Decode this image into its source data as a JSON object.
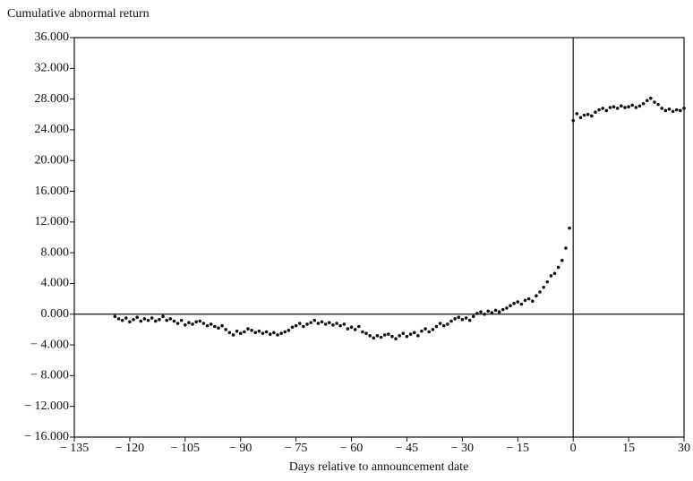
{
  "chart_data": {
    "type": "scatter",
    "title": "Cumulative abnormal return",
    "x_label": "Days relative to announcement date",
    "color": "#111111",
    "xlim": [
      -135,
      30
    ],
    "ylim": [
      -16,
      36
    ],
    "xticks": [
      {
        "value": -135,
        "label": "− 135"
      },
      {
        "value": -120,
        "label": "− 120"
      },
      {
        "value": -105,
        "label": "− 105"
      },
      {
        "value": -90,
        "label": "− 90"
      },
      {
        "value": -75,
        "label": "− 75"
      },
      {
        "value": -60,
        "label": "− 60"
      },
      {
        "value": -45,
        "label": "− 45"
      },
      {
        "value": -30,
        "label": "− 30"
      },
      {
        "value": -15,
        "label": "− 15"
      },
      0,
      15,
      30
    ],
    "yticks": [
      {
        "value": 36,
        "label": "36.000"
      },
      {
        "value": 32,
        "label": "32.000"
      },
      {
        "value": 28,
        "label": "28.000"
      },
      {
        "value": 24,
        "label": "24.000"
      },
      {
        "value": 20,
        "label": "20.000"
      },
      {
        "value": 16,
        "label": "16.000"
      },
      {
        "value": 12,
        "label": "12.000"
      },
      {
        "value": 8,
        "label": "8.000"
      },
      {
        "value": 4,
        "label": "4.000"
      },
      {
        "value": 0,
        "label": "0.000"
      },
      {
        "value": -4,
        "label": "− 4.000"
      },
      {
        "value": -8,
        "label": "− 8.000"
      },
      {
        "value": -12,
        "label": "− 12.000"
      },
      {
        "value": -16,
        "label": "− 16.000"
      }
    ],
    "hline": 0,
    "vline": 0,
    "x": [
      -124,
      -123,
      -122,
      -121,
      -120,
      -119,
      -118,
      -117,
      -116,
      -115,
      -114,
      -113,
      -112,
      -111,
      -110,
      -109,
      -108,
      -107,
      -106,
      -105,
      -104,
      -103,
      -102,
      -101,
      -100,
      -99,
      -98,
      -97,
      -96,
      -95,
      -94,
      -93,
      -92,
      -91,
      -90,
      -89,
      -88,
      -87,
      -86,
      -85,
      -84,
      -83,
      -82,
      -81,
      -80,
      -79,
      -78,
      -77,
      -76,
      -75,
      -74,
      -73,
      -72,
      -71,
      -70,
      -69,
      -68,
      -67,
      -66,
      -65,
      -64,
      -63,
      -62,
      -61,
      -60,
      -59,
      -58,
      -57,
      -56,
      -55,
      -54,
      -53,
      -52,
      -51,
      -50,
      -49,
      -48,
      -47,
      -46,
      -45,
      -44,
      -43,
      -42,
      -41,
      -40,
      -39,
      -38,
      -37,
      -36,
      -35,
      -34,
      -33,
      -32,
      -31,
      -30,
      -29,
      -28,
      -27,
      -26,
      -25,
      -24,
      -23,
      -22,
      -21,
      -20,
      -19,
      -18,
      -17,
      -16,
      -15,
      -14,
      -13,
      -12,
      -11,
      -10,
      -9,
      -8,
      -7,
      -6,
      -5,
      -4,
      -3,
      -2,
      -1,
      0,
      1,
      2,
      3,
      4,
      5,
      6,
      7,
      8,
      9,
      10,
      11,
      12,
      13,
      14,
      15,
      16,
      17,
      18,
      19,
      20,
      21,
      22,
      23,
      24,
      25,
      26,
      27,
      28,
      29,
      30
    ],
    "values": [
      -0.3,
      -0.6,
      -0.8,
      -0.5,
      -1.0,
      -0.7,
      -0.4,
      -0.9,
      -0.6,
      -0.8,
      -0.5,
      -0.9,
      -0.7,
      -0.3,
      -0.8,
      -0.6,
      -0.9,
      -1.2,
      -0.8,
      -1.4,
      -1.1,
      -1.3,
      -1.0,
      -0.9,
      -1.2,
      -1.5,
      -1.3,
      -1.6,
      -1.8,
      -1.5,
      -2.0,
      -2.4,
      -2.7,
      -2.2,
      -2.5,
      -2.3,
      -1.9,
      -2.1,
      -2.4,
      -2.2,
      -2.5,
      -2.3,
      -2.6,
      -2.4,
      -2.7,
      -2.5,
      -2.3,
      -2.1,
      -1.7,
      -1.5,
      -1.2,
      -1.6,
      -1.3,
      -1.1,
      -0.8,
      -1.2,
      -1.0,
      -1.3,
      -1.1,
      -1.4,
      -1.2,
      -1.5,
      -1.3,
      -1.9,
      -1.7,
      -2.0,
      -1.6,
      -2.3,
      -2.5,
      -2.8,
      -3.1,
      -2.8,
      -3.0,
      -2.7,
      -2.6,
      -2.9,
      -3.2,
      -2.8,
      -2.5,
      -2.9,
      -2.6,
      -2.4,
      -2.8,
      -2.2,
      -1.9,
      -2.3,
      -2.0,
      -1.6,
      -1.2,
      -1.5,
      -1.3,
      -0.9,
      -0.6,
      -0.4,
      -0.7,
      -0.5,
      -0.8,
      -0.3,
      0.1,
      0.3,
      0.0,
      0.4,
      0.2,
      0.5,
      0.3,
      0.6,
      0.8,
      1.1,
      1.4,
      1.6,
      1.3,
      1.8,
      2.0,
      1.7,
      2.4,
      2.9,
      3.5,
      4.2,
      5.0,
      5.3,
      6.1,
      7.0,
      8.6,
      11.2,
      25.2,
      26.1,
      25.6,
      25.9,
      26.0,
      25.8,
      26.3,
      26.6,
      26.8,
      26.5,
      26.9,
      27.0,
      26.8,
      27.1,
      26.9,
      27.0,
      27.2,
      26.9,
      27.1,
      27.4,
      27.8,
      28.1,
      27.6,
      27.3,
      26.8,
      26.5,
      26.7,
      26.4,
      26.6,
      26.5,
      26.8
    ]
  }
}
